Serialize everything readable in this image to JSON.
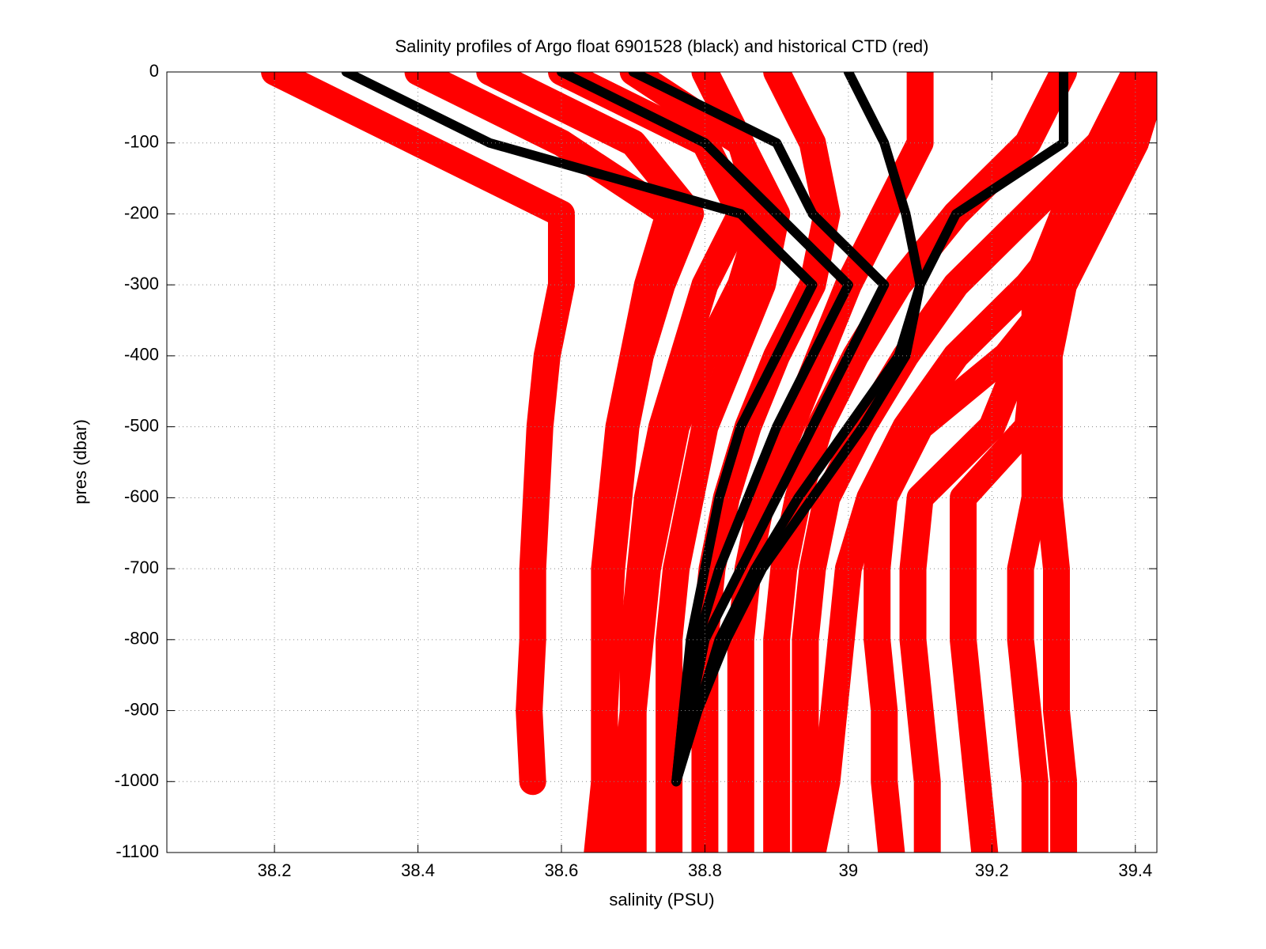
{
  "chart_data": {
    "type": "scatter",
    "title": "Salinity profiles of Argo float 6901528 (black) and historical CTD (red)",
    "x_label": "salinity (PSU)",
    "y_label": "pres (dbar)",
    "xlim": [
      38.05,
      39.43
    ],
    "ylim": [
      -1100,
      0
    ],
    "xticks": [
      38.2,
      38.4,
      38.6,
      38.8,
      39,
      39.2,
      39.4
    ],
    "yticks": [
      0,
      -100,
      -200,
      -300,
      -400,
      -500,
      -600,
      -700,
      -800,
      -900,
      -1000,
      -1100
    ],
    "grid": true,
    "series": [
      {
        "color": "#ff0000",
        "x": [
          38.2,
          38.4,
          38.6,
          38.6,
          38.58,
          38.57,
          38.565,
          38.56,
          38.56,
          38.555,
          38.56,
          null
        ],
        "values": [
          0,
          -100,
          -200,
          -300,
          -400,
          -500,
          -600,
          -700,
          -800,
          -900,
          -1000,
          null
        ]
      },
      {
        "color": "#ff0000",
        "x": [
          38.5,
          38.7,
          38.78,
          38.74,
          38.71,
          38.69,
          38.68,
          38.67,
          38.665,
          38.66,
          38.66,
          38.65
        ],
        "values": [
          0,
          -100,
          -200,
          -300,
          -400,
          -500,
          -600,
          -700,
          -800,
          -900,
          -1000,
          -1100
        ]
      },
      {
        "color": "#ff0000",
        "x": [
          38.4,
          38.6,
          38.75,
          38.72,
          38.7,
          38.68,
          38.67,
          38.66,
          38.66,
          38.66,
          38.66,
          38.66
        ],
        "values": [
          0,
          -100,
          -200,
          -300,
          -400,
          -500,
          -600,
          -700,
          -800,
          -900,
          -1000,
          -1100
        ]
      },
      {
        "color": "#ff0000",
        "x": [
          38.6,
          38.8,
          38.85,
          38.8,
          38.77,
          38.74,
          38.72,
          38.71,
          38.7,
          38.7,
          38.7,
          38.7
        ],
        "values": [
          0,
          -100,
          -200,
          -300,
          -400,
          -500,
          -600,
          -700,
          -800,
          -900,
          -1000,
          -1100
        ]
      },
      {
        "color": "#ff0000",
        "x": [
          38.8,
          38.85,
          38.88,
          38.85,
          38.8,
          38.76,
          38.74,
          38.72,
          38.71,
          38.7,
          38.69,
          38.68
        ],
        "values": [
          0,
          -100,
          -200,
          -300,
          -400,
          -500,
          -600,
          -700,
          -800,
          -900,
          -1000,
          -1100
        ]
      },
      {
        "color": "#ff0000",
        "x": [
          38.7,
          38.85,
          38.9,
          38.88,
          38.84,
          38.8,
          38.78,
          38.76,
          38.75,
          38.75,
          38.75,
          38.75
        ],
        "values": [
          0,
          -100,
          -200,
          -300,
          -400,
          -500,
          -600,
          -700,
          -800,
          -900,
          -1000,
          -1100
        ]
      },
      {
        "color": "#ff0000",
        "x": [
          38.9,
          38.95,
          38.97,
          38.95,
          38.9,
          38.86,
          38.83,
          38.81,
          38.8,
          38.8,
          38.8,
          38.8
        ],
        "values": [
          0,
          -100,
          -200,
          -300,
          -400,
          -500,
          -600,
          -700,
          -800,
          -900,
          -1000,
          -1100
        ]
      },
      {
        "color": "#ff0000",
        "x": [
          39.1,
          39.1,
          39.05,
          39.0,
          38.96,
          38.92,
          38.88,
          38.86,
          38.85,
          38.85,
          38.85,
          38.85
        ],
        "values": [
          0,
          -100,
          -200,
          -300,
          -400,
          -500,
          -600,
          -700,
          -800,
          -900,
          -1000,
          -1100
        ]
      },
      {
        "color": "#ff0000",
        "x": [
          39.3,
          39.25,
          39.15,
          39.07,
          39.01,
          38.96,
          38.93,
          38.91,
          38.9,
          38.9,
          38.9,
          38.9
        ],
        "values": [
          0,
          -100,
          -200,
          -300,
          -400,
          -500,
          -600,
          -700,
          -800,
          -900,
          -1000,
          -1100
        ]
      },
      {
        "color": "#ff0000",
        "x": [
          39.4,
          39.35,
          39.25,
          39.15,
          39.08,
          39.02,
          38.97,
          38.95,
          38.94,
          38.94,
          38.94,
          38.94
        ],
        "values": [
          0,
          -100,
          -200,
          -300,
          -400,
          -500,
          -600,
          -700,
          -800,
          -900,
          -1000,
          -1100
        ]
      },
      {
        "color": "#ff0000",
        "x": [
          39.42,
          39.4,
          39.33,
          39.25,
          39.15,
          39.08,
          39.03,
          39.0,
          38.99,
          38.98,
          38.97,
          38.95
        ],
        "values": [
          0,
          -100,
          -200,
          -300,
          -400,
          -500,
          -600,
          -700,
          -800,
          -900,
          -1000,
          -1100
        ]
      },
      {
        "color": "#ff0000",
        "x": [
          39.43,
          39.4,
          39.35,
          39.3,
          39.22,
          39.1,
          39.05,
          39.04,
          39.04,
          39.05,
          39.05,
          39.06
        ],
        "values": [
          0,
          -100,
          -200,
          -300,
          -400,
          -500,
          -600,
          -700,
          -800,
          -900,
          -1000,
          -1100
        ]
      },
      {
        "color": "#ff0000",
        "x": [
          39.43,
          39.38,
          39.34,
          39.28,
          39.24,
          39.2,
          39.1,
          39.09,
          39.09,
          39.1,
          39.11,
          39.11
        ],
        "values": [
          0,
          -100,
          -200,
          -300,
          -400,
          -500,
          -600,
          -700,
          -800,
          -900,
          -1000,
          -1100
        ]
      },
      {
        "color": "#ff0000",
        "x": [
          39.4,
          39.35,
          39.3,
          39.26,
          39.26,
          39.25,
          39.16,
          39.16,
          39.16,
          39.17,
          39.18,
          39.19
        ],
        "values": [
          0,
          -100,
          -200,
          -300,
          -400,
          -500,
          -600,
          -700,
          -800,
          -900,
          -1000,
          -1100
        ]
      },
      {
        "color": "#ff0000",
        "x": [
          39.43,
          39.4,
          39.35,
          39.3,
          39.27,
          39.26,
          39.26,
          39.24,
          39.24,
          39.25,
          39.26,
          39.26
        ],
        "values": [
          0,
          -100,
          -200,
          -300,
          -400,
          -500,
          -600,
          -700,
          -800,
          -900,
          -1000,
          -1100
        ]
      },
      {
        "color": "#ff0000",
        "x": [
          39.43,
          39.38,
          39.34,
          39.3,
          39.28,
          39.28,
          39.28,
          39.29,
          39.29,
          39.29,
          39.3,
          39.3
        ],
        "values": [
          0,
          -100,
          -200,
          -300,
          -400,
          -500,
          -600,
          -700,
          -800,
          -900,
          -1000,
          -1100
        ]
      },
      {
        "color": "#000000",
        "x": [
          38.3,
          38.5,
          38.85,
          38.95,
          38.9,
          38.85,
          38.82,
          38.8,
          38.78,
          38.77,
          38.76,
          null
        ],
        "values": [
          0,
          -100,
          -200,
          -300,
          -400,
          -500,
          -600,
          -700,
          -800,
          -900,
          -1000,
          null
        ]
      },
      {
        "color": "#000000",
        "x": [
          38.6,
          38.8,
          38.9,
          39.0,
          38.95,
          38.9,
          38.86,
          38.82,
          38.79,
          38.77,
          38.76,
          null
        ],
        "values": [
          0,
          -100,
          -200,
          -300,
          -400,
          -500,
          -600,
          -700,
          -800,
          -900,
          -1000,
          null
        ]
      },
      {
        "color": "#000000",
        "x": [
          38.7,
          38.9,
          38.95,
          39.05,
          39.0,
          38.95,
          38.9,
          38.85,
          38.8,
          38.78,
          38.76,
          null
        ],
        "values": [
          0,
          -100,
          -200,
          -300,
          -400,
          -500,
          -600,
          -700,
          -800,
          -900,
          -1000,
          null
        ]
      },
      {
        "color": "#000000",
        "x": [
          39.0,
          39.05,
          39.08,
          39.1,
          39.07,
          39.0,
          38.93,
          38.87,
          38.82,
          38.79,
          38.76,
          null
        ],
        "values": [
          0,
          -100,
          -200,
          -300,
          -400,
          -500,
          -600,
          -700,
          -800,
          -900,
          -1000,
          null
        ]
      },
      {
        "color": "#000000",
        "x": [
          39.3,
          39.3,
          39.15,
          39.1,
          39.08,
          39.02,
          38.95,
          38.88,
          38.83,
          38.79,
          38.76,
          null
        ],
        "values": [
          0,
          -100,
          -200,
          -300,
          -400,
          -500,
          -600,
          -700,
          -800,
          -900,
          -1000,
          null
        ]
      }
    ]
  }
}
